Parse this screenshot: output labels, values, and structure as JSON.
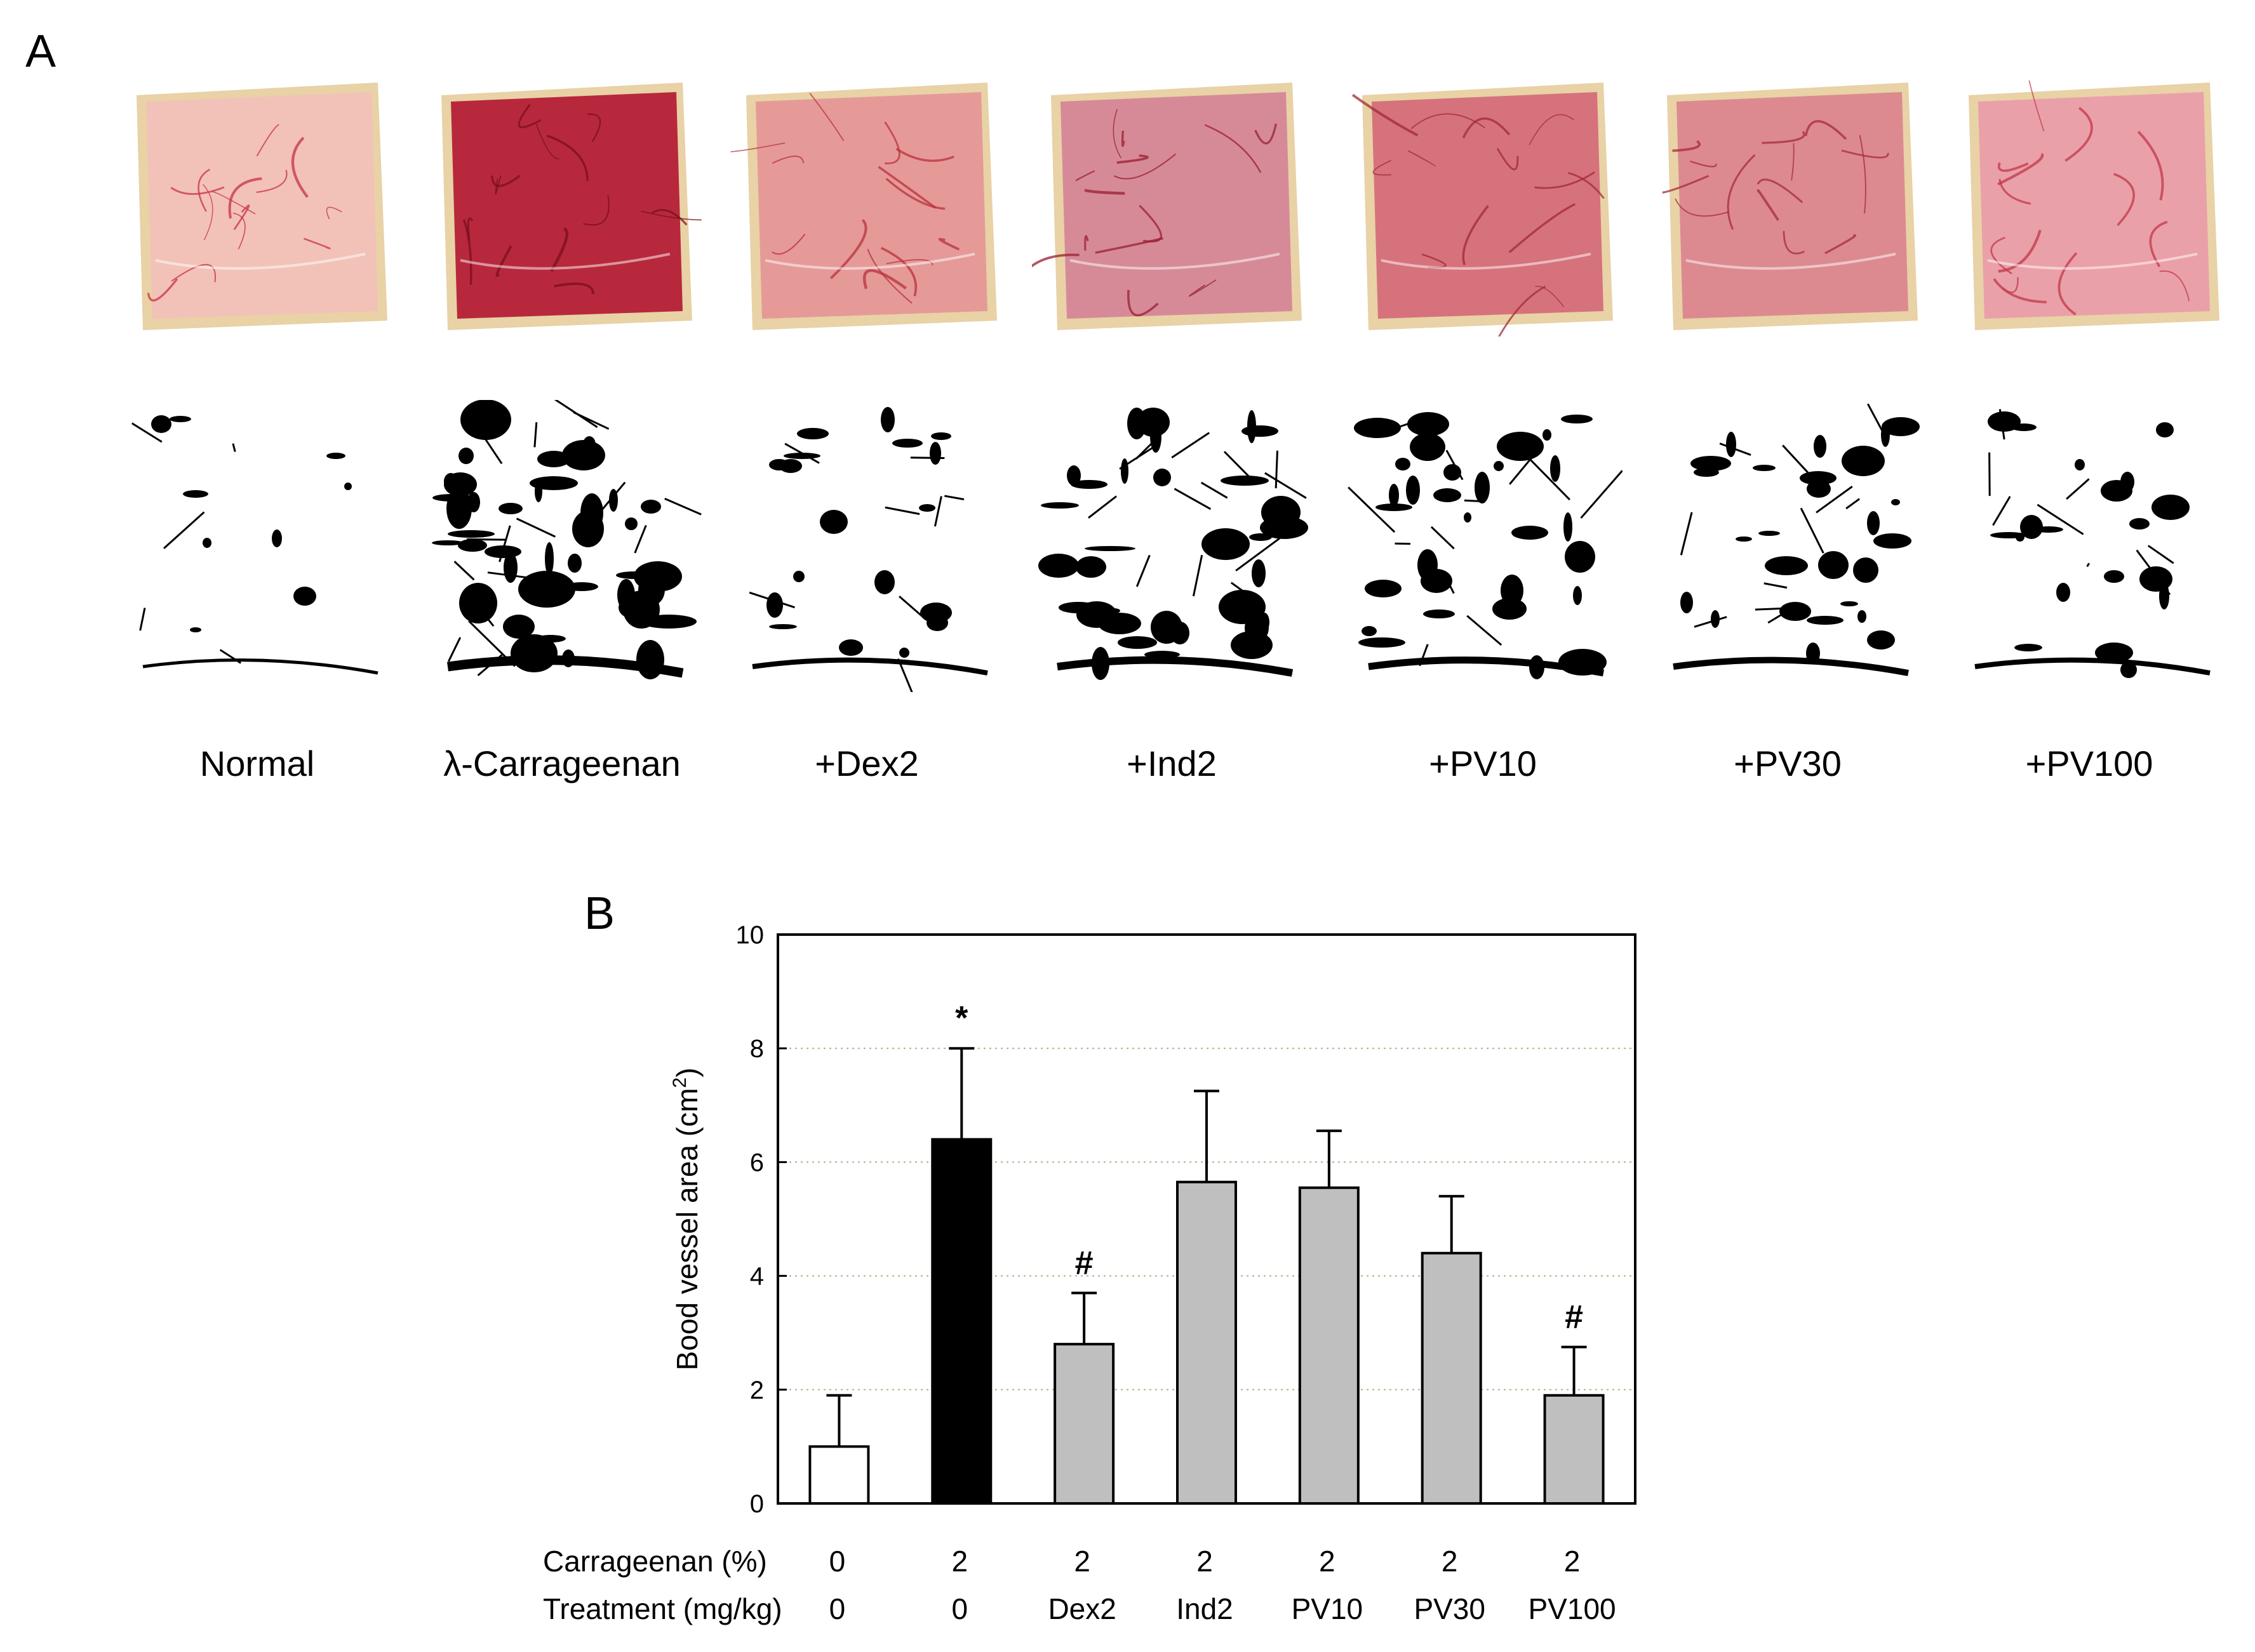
{
  "panel_a": {
    "letter": "A",
    "groups": [
      {
        "label": "Normal",
        "tissue": "#f2c2b8",
        "vessel": "#c8304a",
        "mask_density": 0.05
      },
      {
        "label": "λ-Carrageenan",
        "tissue": "#b8283c",
        "vessel": "#7a0f1e",
        "mask_density": 0.62
      },
      {
        "label": "+Dex2",
        "tissue": "#e59a98",
        "vessel": "#b83040",
        "mask_density": 0.2
      },
      {
        "label": "+Ind2",
        "tissue": "#d68a98",
        "vessel": "#9a1e32",
        "mask_density": 0.45
      },
      {
        "label": "+PV10",
        "tissue": "#d6727c",
        "vessel": "#a0283a",
        "mask_density": 0.4
      },
      {
        "label": "+PV30",
        "tissue": "#dc8a90",
        "vessel": "#a82a3a",
        "mask_density": 0.34
      },
      {
        "label": "+PV100",
        "tissue": "#eaa0a8",
        "vessel": "#c0384a",
        "mask_density": 0.22
      }
    ]
  },
  "panel_b": {
    "letter": "B",
    "row_labels": {
      "carrageenan": "Carrageenan (%)",
      "treatment": "Treatment (mg/kg)"
    },
    "carrageenan": [
      "0",
      "2",
      "2",
      "2",
      "2",
      "2",
      "2"
    ],
    "treatment": [
      "0",
      "0",
      "Dex2",
      "Ind2",
      "PV10",
      "PV30",
      "PV100"
    ]
  },
  "chart_data": {
    "type": "bar",
    "ylabel_main": "Bood vessel area (cm",
    "ylabel_sup": "2",
    "ylabel_close": ")",
    "ylim": [
      0,
      10
    ],
    "yticks": [
      "0",
      "2",
      "4",
      "6",
      "8",
      "10"
    ],
    "grid": "dotted horizontal",
    "categories": [
      "0/0",
      "2/0",
      "2/Dex2",
      "2/Ind2",
      "2/PV10",
      "2/PV30",
      "2/PV100"
    ],
    "values": [
      1.0,
      6.4,
      2.8,
      5.65,
      5.55,
      4.4,
      1.9
    ],
    "errors": [
      0.9,
      1.6,
      0.9,
      1.6,
      1.0,
      1.0,
      0.85
    ],
    "annotations": [
      "",
      "*",
      "#",
      "",
      "",
      "",
      "#"
    ],
    "colors": [
      "#ffffff",
      "#000000",
      "#bfbfbf",
      "#bfbfbf",
      "#bfbfbf",
      "#bfbfbf",
      "#bfbfbf"
    ]
  }
}
